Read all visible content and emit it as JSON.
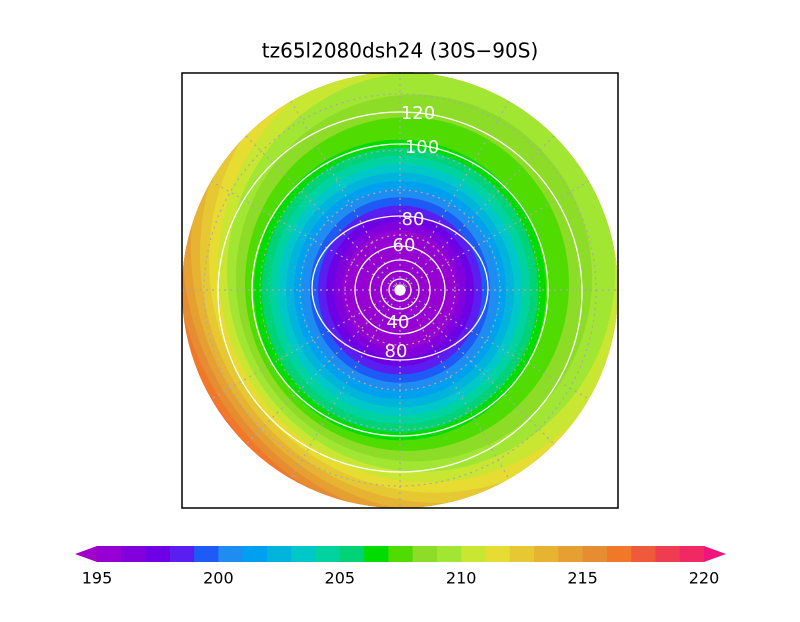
{
  "header": {
    "title": "tz65l2080dsh24 (30S−90S)"
  },
  "contour_labels": [
    "120",
    "100",
    "80",
    "60",
    "40",
    "80"
  ],
  "colorbar": {
    "ticks": [
      195,
      200,
      205,
      210,
      215,
      220
    ],
    "min": 195,
    "max": 220,
    "colors": [
      "#a000c8",
      "#9600d2",
      "#8200dc",
      "#6e00e6",
      "#5a1ef0",
      "#1e5af5",
      "#1e8cf0",
      "#00a0f0",
      "#00b4dc",
      "#00c8c8",
      "#00d2a0",
      "#00d278",
      "#00dc00",
      "#50dc00",
      "#8cdc28",
      "#a0e632",
      "#c8e632",
      "#e6dc32",
      "#e6c832",
      "#e6b432",
      "#e6a032",
      "#e68c32",
      "#f07828",
      "#f05a3c",
      "#f03c50",
      "#f02864",
      "#f0147c"
    ]
  }
}
